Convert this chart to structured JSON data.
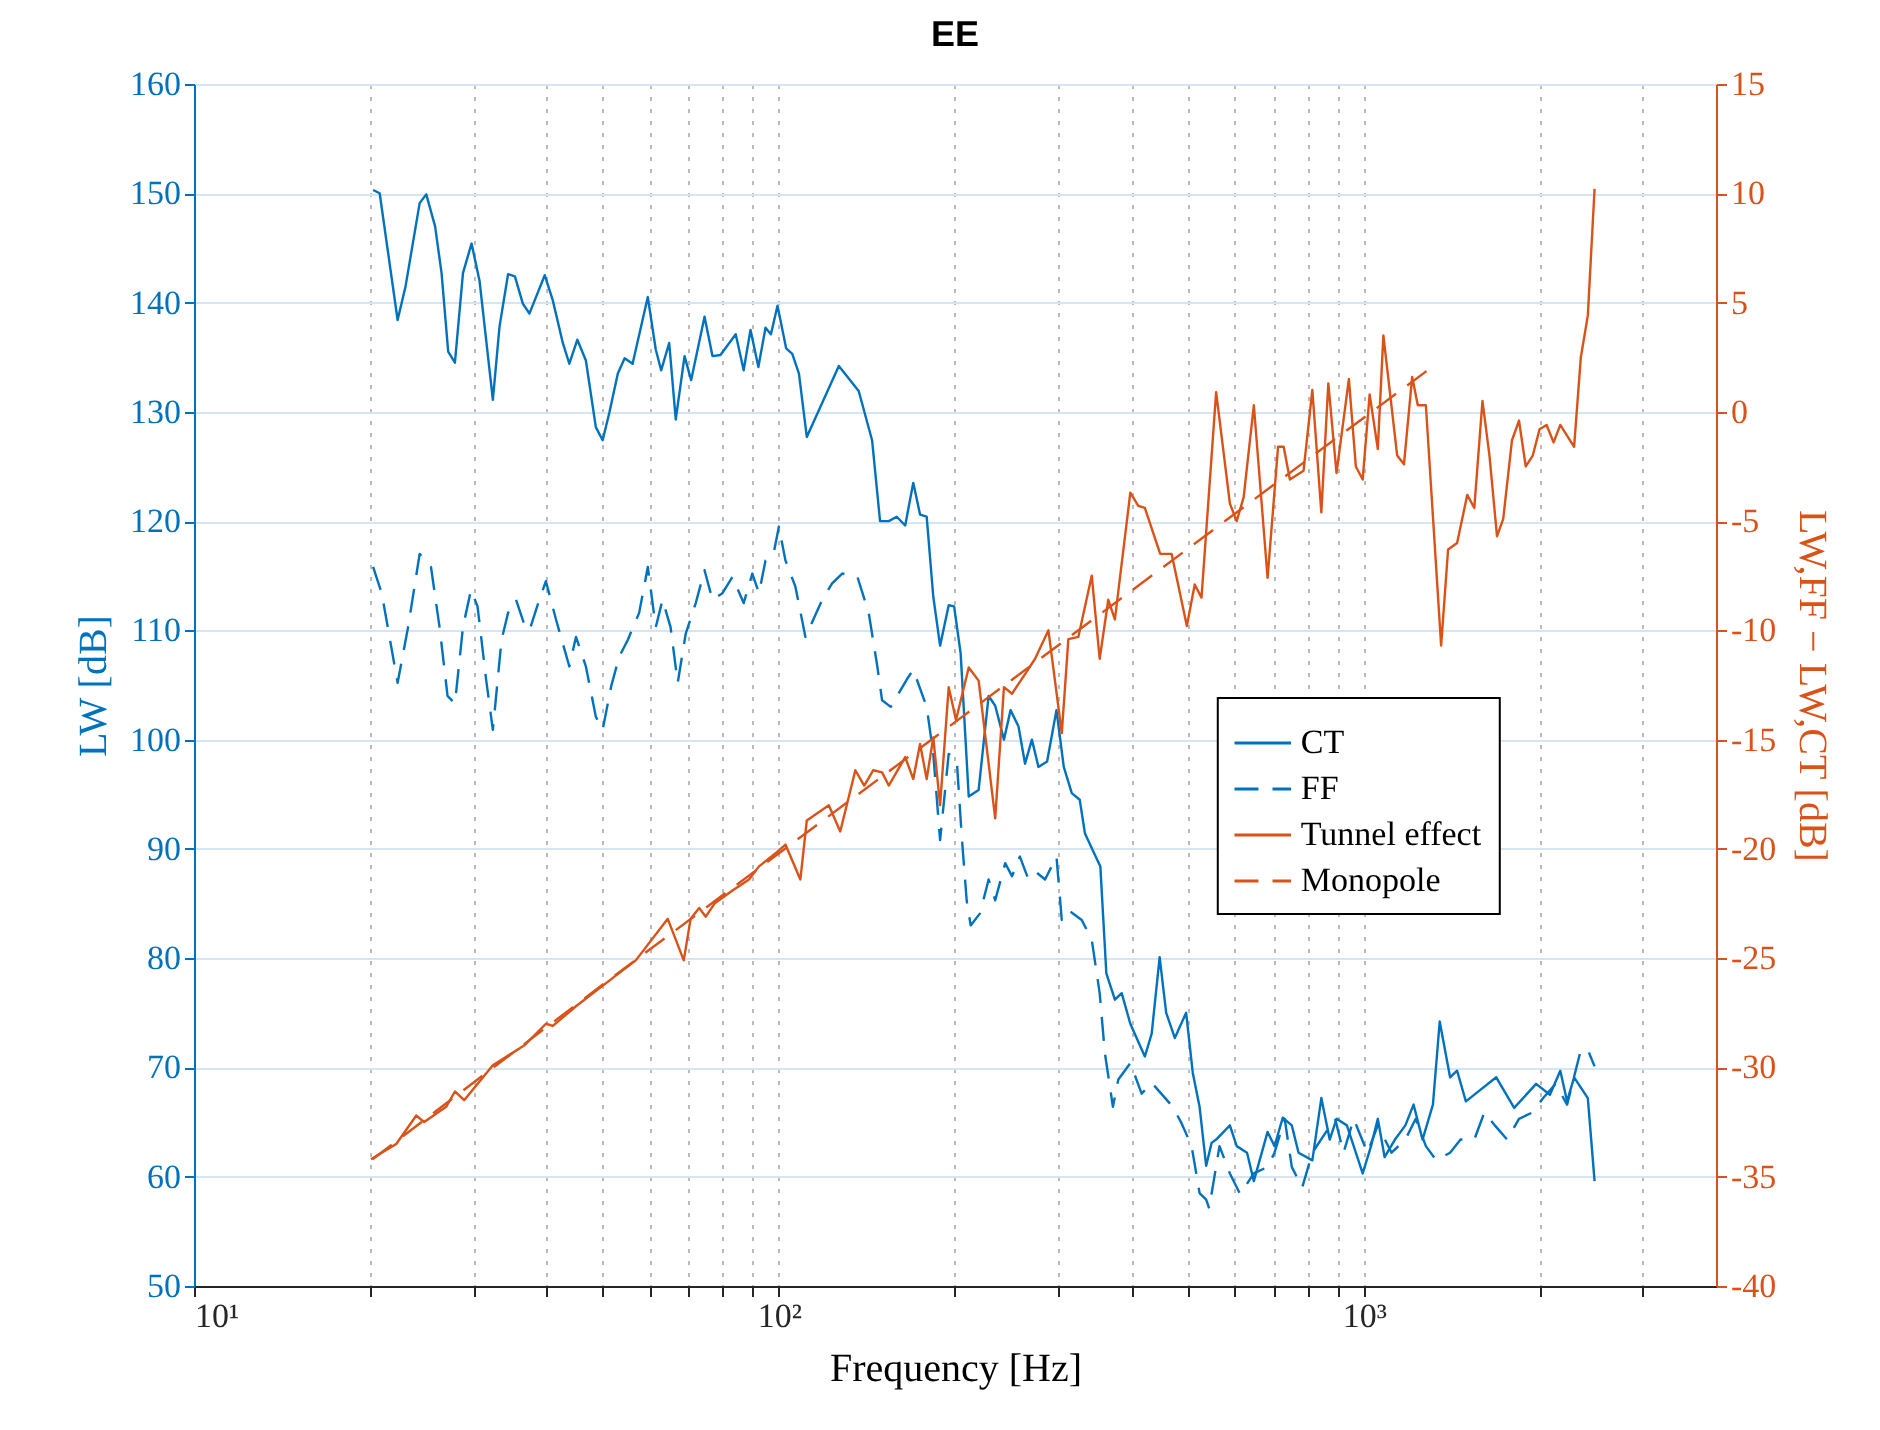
{
  "chart_data": {
    "type": "line",
    "title": "EE",
    "xlabel": "Frequency [Hz]",
    "ylabel": "LW [dB]",
    "y2label": "LW,FF − LW,CT [dB]",
    "log": "x",
    "grid": true,
    "legend": "right",
    "xlim": [
      10,
      4000
    ],
    "xticks": [
      {
        "value": 10,
        "label": "10¹"
      },
      {
        "value": 20,
        "label": null
      },
      {
        "value": 30,
        "label": null
      },
      {
        "value": 40,
        "label": null
      },
      {
        "value": 50,
        "label": null
      },
      {
        "value": 60,
        "label": null
      },
      {
        "value": 70,
        "label": null
      },
      {
        "value": 80,
        "label": null
      },
      {
        "value": 90,
        "label": null
      },
      {
        "value": 100,
        "label": "10²"
      },
      {
        "value": 200,
        "label": null
      },
      {
        "value": 300,
        "label": null
      },
      {
        "value": 400,
        "label": null
      },
      {
        "value": 500,
        "label": null
      },
      {
        "value": 600,
        "label": null
      },
      {
        "value": 700,
        "label": null
      },
      {
        "value": 800,
        "label": null
      },
      {
        "value": 900,
        "label": null
      },
      {
        "value": 1000,
        "label": "10³"
      },
      {
        "value": 2000,
        "label": null
      },
      {
        "value": 3000,
        "label": null
      }
    ],
    "ylim": [
      50,
      160
    ],
    "yticks": [
      50,
      60,
      70,
      80,
      90,
      100,
      110,
      120,
      130,
      140,
      150,
      160
    ],
    "y2lim": [
      -40,
      15
    ],
    "y2ticks": [
      -40,
      -35,
      -30,
      -25,
      -20,
      -15,
      -10,
      -5,
      0,
      5,
      10,
      15
    ],
    "series": [
      {
        "name": "CT",
        "type": "line",
        "axis": "y",
        "line_style": "solid",
        "color": "#0072bd",
        "x": [
          20.24,
          20.77,
          22.29,
          23.0,
          24.31,
          24.95,
          25.83,
          26.5,
          27.2,
          27.93,
          28.83,
          29.82,
          30.77,
          32.43,
          33.29,
          34.43,
          35.37,
          36.49,
          37.45,
          38.43,
          39.78,
          41.06,
          42.71,
          43.82,
          45.23,
          46.77,
          48.64,
          49.96,
          51.28,
          53.04,
          54.48,
          56.21,
          59.68,
          61.58,
          62.9,
          64.92,
          66.62,
          68.97,
          70.78,
          74.61,
          76.99,
          79.43,
          84.36,
          87.04,
          89.41,
          92.23,
          94.86,
          96.89,
          99.45,
          102.9,
          105.4,
          108.2,
          111.6,
          126.6,
          136.9,
          144.3,
          148.9,
          154.1,
          159.0,
          164.4,
          169.7,
          174.3,
          178.9,
          183.6,
          188.6,
          195.1,
          199.3,
          204.5,
          211.1,
          219.5,
          228.3,
          234.3,
          242.5,
          248.9,
          256.8,
          263.5,
          270.7,
          277.8,
          287.4,
          298.2,
          306.9,
          316.7,
          326.8,
          333.6,
          354.4,
          362.9,
          375.3,
          385.5,
          398.8,
          422.3,
          433.8,
          447.6,
          459.3,
          475.1,
          496.8,
          510,
          523.8,
          537.6,
          549.2,
          559.1,
          590.2,
          606.2,
          631.4,
          648.5,
          684.6,
          703.6,
          726.7,
          753,
          773.4,
          816.5,
          845.9,
          874.3,
          898,
          935.4,
          995.4,
          1028.7,
          1056.5,
          1085.1,
          1130.3,
          1177.6,
          1216.2,
          1259.9,
          1312.5,
          1348,
          1404.2,
          1443.5,
          1494.3,
          1684.1,
          1807.2,
          1970.2,
          2080.3,
          2167,
          2225.7,
          2288,
          2415,
          2480
        ],
        "values": [
          150.3,
          150,
          138.4,
          141.5,
          149.1,
          149.9,
          147,
          142.7,
          135.5,
          134.5,
          142.7,
          145.4,
          142,
          131.1,
          137.8,
          142.6,
          142.4,
          139.9,
          139,
          140.5,
          142.5,
          140.2,
          136.3,
          134.4,
          136.6,
          134.7,
          128.6,
          127.4,
          129.9,
          133.5,
          134.9,
          134.4,
          140.5,
          135.7,
          133.8,
          136.3,
          129.3,
          135.1,
          132.9,
          138.7,
          135.1,
          135.2,
          137.1,
          133.8,
          137.5,
          134.1,
          137.7,
          137.1,
          139.7,
          135.8,
          135.3,
          133.5,
          127.7,
          134.2,
          131.9,
          127.4,
          120,
          120,
          120.4,
          119.6,
          123.5,
          120.6,
          120.4,
          113.1,
          108.6,
          112.3,
          112.2,
          107.9,
          94.8,
          95.4,
          104,
          103.1,
          100,
          102.7,
          101.2,
          97.8,
          100,
          97.5,
          98,
          102.7,
          97.5,
          95.1,
          94.5,
          91.4,
          88.4,
          78.6,
          76.2,
          76.8,
          74,
          71,
          73.1,
          80.1,
          75,
          72.7,
          75,
          69.5,
          66.4,
          61,
          63.1,
          63.4,
          64.7,
          62.8,
          62.2,
          59.6,
          64.1,
          62.8,
          65.4,
          64.7,
          62.2,
          61.5,
          67.2,
          63.4,
          65.3,
          64.7,
          60.3,
          62.8,
          65.3,
          61.8,
          63.4,
          64.7,
          66.6,
          63.4,
          66.6,
          74.2,
          69.1,
          69.7,
          66.9,
          69.1,
          66.3,
          68.5,
          67.5,
          69.7,
          66.9,
          69.1,
          67.2,
          59.6
        ]
      },
      {
        "name": "FF",
        "type": "line",
        "axis": "y",
        "line_style": "dashed",
        "color": "#0072bd",
        "x": [
          20.24,
          20.94,
          22.29,
          23.23,
          24.31,
          25.42,
          26.29,
          27.13,
          27.93,
          28.83,
          29.75,
          30.53,
          31.58,
          32.43,
          33.55,
          34.43,
          35.53,
          36.67,
          37.45,
          38.94,
          39.96,
          41.58,
          43.82,
          44.98,
          46.77,
          48.64,
          49.96,
          51.68,
          53.33,
          55.13,
          57.68,
          59.68,
          61.58,
          63.25,
          65.27,
          67.14,
          69.29,
          72.08,
          74.61,
          76.99,
          80.07,
          83.29,
          87.04,
          90.07,
          92.45,
          94.86,
          97.9,
          100,
          102.6,
          106.7,
          111,
          118.6,
          123.3,
          128.3,
          136.2,
          142.4,
          147.3,
          150.1,
          155.3,
          165.4,
          169.7,
          178.9,
          183.6,
          188.6,
          195.1,
          201.4,
          205.6,
          209.4,
          212.7,
          220.7,
          228.3,
          234.3,
          243.7,
          250.3,
          258.2,
          267.1,
          276.3,
          285.1,
          298.2,
          304.5,
          312.5,
          329.4,
          342.6,
          353.5,
          360.8,
          372.4,
          380.4,
          398.8,
          417,
          433.8,
          471.4,
          487.9,
          507.6,
          523.8,
          537.6,
          543.9,
          566.5,
          590.2,
          614.4,
          648.5,
          684.6,
          703.6,
          732.4,
          753,
          784.4,
          816.5,
          862,
          893.1,
          923.1,
          960.9,
          1014.2,
          1056.5,
          1115.3,
          1177.6,
          1226.6,
          1276.6,
          1330.1,
          1404.2,
          1463.2,
          1544.6,
          1607.7,
          1674.6,
          1758.4,
          1841.9,
          1944.3,
          2025.6,
          2127.2,
          2225.7,
          2349.6,
          2415,
          2480
        ],
        "values": [
          115.8,
          113.4,
          105.2,
          110.3,
          117,
          115.8,
          110.3,
          104,
          103.3,
          110.3,
          113.7,
          112.2,
          105.5,
          100.9,
          109.1,
          111.6,
          112.8,
          110.6,
          110,
          112.8,
          114.5,
          111,
          106.7,
          109.4,
          106.7,
          102.1,
          100.9,
          104.9,
          107.6,
          109.1,
          111.6,
          115.8,
          110.3,
          112.8,
          110.3,
          105.2,
          109.7,
          112.5,
          115.5,
          112.8,
          113.4,
          114.9,
          112.5,
          115.2,
          113.4,
          116.4,
          117,
          119.5,
          116.4,
          114,
          109.4,
          112.8,
          114.3,
          115.2,
          114.9,
          111.6,
          106.7,
          103.6,
          103,
          105.5,
          106.4,
          103,
          98.7,
          90.8,
          98.7,
          98.1,
          90.8,
          85.3,
          83,
          84.1,
          87.2,
          85.3,
          88.7,
          87.5,
          89.3,
          87.2,
          87.8,
          87.2,
          89.3,
          83.5,
          84.4,
          83.5,
          81.7,
          76.8,
          71.3,
          66.4,
          68.9,
          70.4,
          67.6,
          68.6,
          66.4,
          64.9,
          62.8,
          58.5,
          57.9,
          57.1,
          62.8,
          60.3,
          58.4,
          60.3,
          60.9,
          62.2,
          65.3,
          60.9,
          59,
          62.2,
          64.1,
          65.3,
          62.2,
          65.3,
          62.2,
          64.7,
          62.2,
          63.4,
          65.3,
          62.8,
          61.5,
          62.2,
          63.4,
          63.4,
          65.9,
          64.7,
          63.4,
          65.3,
          65.9,
          67.2,
          68.5,
          66.6,
          71.6,
          71.6,
          70.1
        ]
      },
      {
        "name": "Tunnel effect",
        "type": "line",
        "axis": "y2",
        "line_style": "solid",
        "color": "#d95319",
        "x": [
          20.07,
          22.17,
          23.99,
          24.75,
          26.98,
          27.93,
          28.96,
          32.43,
          36.67,
          39.96,
          41.06,
          44.98,
          52.62,
          56.92,
          64.56,
          68.75,
          70.64,
          73.07,
          74.98,
          77.6,
          83.29,
          88.89,
          92.45,
          98.68,
          102.6,
          108.8,
          111.6,
          121.7,
          127.3,
          135.1,
          139.9,
          145,
          150.1,
          154.1,
          164.4,
          169.7,
          174.3,
          178.9,
          183.6,
          188.6,
          195.1,
          200.8,
          211.1,
          219.5,
          234.3,
          242.5,
          250.3,
          263.5,
          274.1,
          288.9,
          304.5,
          312.5,
          325,
          342.6,
          353.5,
          365.7,
          375.3,
          398.8,
          411.5,
          422.3,
          448.6,
          469.2,
          498.2,
          513.9,
          527.8,
          559.1,
          590.2,
          606.2,
          623.1,
          648.5,
          684.6,
          713.4,
          729.3,
          747.4,
          788.7,
          816.5,
          845.9,
          869.5,
          898,
          942.8,
          969,
          995.4,
          1023.1,
          1056.5,
          1079.9,
          1140.3,
          1171.1,
          1209.5,
          1236.6,
          1276.6,
          1355.6,
          1393.2,
          1443.5,
          1502.6,
          1544.6,
          1595.2,
          1639.7,
          1689.2,
          1730.9,
          1791.8,
          1841.9,
          1891.4,
          1944.3,
          1997.2,
          2053.2,
          2110.5,
          2167,
          2288,
          2349.6,
          2415,
          2480
        ],
        "values": [
          -34.2,
          -33.5,
          -32.2,
          -32.5,
          -31.8,
          -31.1,
          -31.5,
          -29.9,
          -29,
          -28,
          -28.1,
          -27.2,
          -25.8,
          -25.1,
          -23.2,
          -25.1,
          -23.2,
          -22.7,
          -23.1,
          -22.5,
          -21.9,
          -21.4,
          -20.8,
          -20.2,
          -19.8,
          -21.4,
          -18.7,
          -18,
          -19.2,
          -16.4,
          -17.1,
          -16.4,
          -16.5,
          -17.1,
          -15.8,
          -16.8,
          -15.2,
          -16.8,
          -14.9,
          -18,
          -12.6,
          -14.1,
          -11.7,
          -12.3,
          -18.6,
          -12.6,
          -12.9,
          -12,
          -11.3,
          -10,
          -14.7,
          -10.4,
          -10.3,
          -7.5,
          -11.3,
          -8.6,
          -9.5,
          -3.7,
          -4.3,
          -4.4,
          -6.5,
          -6.5,
          -9.8,
          -7.9,
          -8.5,
          0.9,
          -4.2,
          -5,
          -3.9,
          0.3,
          -7.6,
          -1.6,
          -1.6,
          -3.1,
          -2.7,
          1,
          -4.6,
          1.3,
          -2.8,
          1.5,
          -2.5,
          -3.1,
          0.8,
          -1.7,
          3.5,
          -2,
          -2.4,
          1.6,
          0.3,
          0.3,
          -10.7,
          -6.3,
          -6,
          -3.8,
          -4.4,
          0.5,
          -2,
          -5.7,
          -4.9,
          -1.3,
          -0.4,
          -2.5,
          -2,
          -0.8,
          -0.6,
          -1.4,
          -0.6,
          -1.6,
          2.5,
          4.4,
          10.2
        ]
      },
      {
        "name": "Monopole",
        "type": "line",
        "axis": "y2",
        "line_style": "dashed",
        "color": "#d95319",
        "x": [
          20.2,
          50,
          100,
          200,
          400,
          800,
          1300
        ],
        "values": [
          -34.2,
          -26.2,
          -20.2,
          -14.2,
          -8.2,
          -2.2,
          2.0
        ]
      }
    ]
  }
}
